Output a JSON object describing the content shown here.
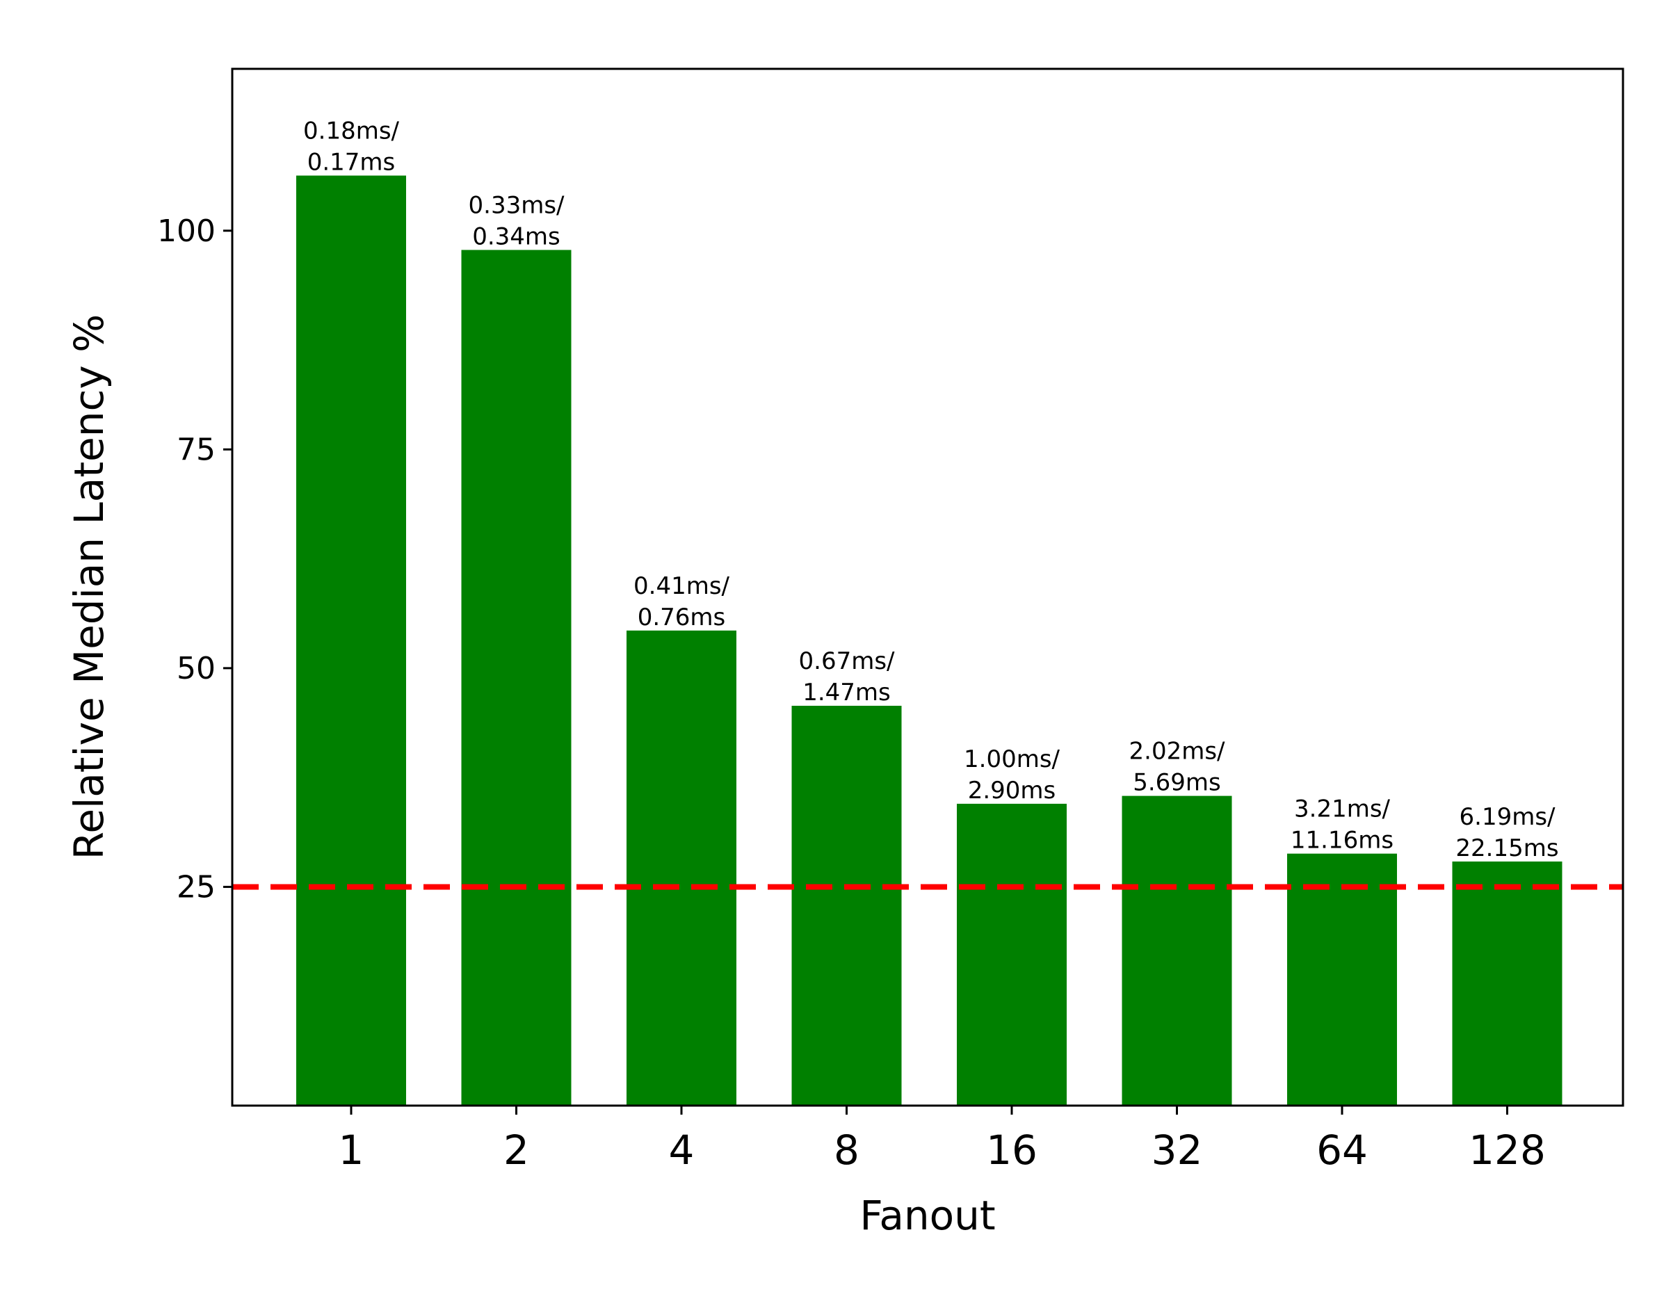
{
  "chart_data": {
    "type": "bar",
    "title": "",
    "xlabel": "Fanout",
    "ylabel": "Relative Median Latency %",
    "categories": [
      "1",
      "2",
      "4",
      "8",
      "16",
      "32",
      "64",
      "128"
    ],
    "values": [
      106.3,
      97.8,
      54.3,
      45.7,
      34.5,
      35.4,
      28.8,
      27.9
    ],
    "bar_labels": [
      [
        "0.18ms/",
        "0.17ms"
      ],
      [
        "0.33ms/",
        "0.34ms"
      ],
      [
        "0.41ms/",
        "0.76ms"
      ],
      [
        "0.67ms/",
        "1.47ms"
      ],
      [
        "1.00ms/",
        "2.90ms"
      ],
      [
        "2.02ms/",
        "5.69ms"
      ],
      [
        "3.21ms/",
        "11.16ms"
      ],
      [
        "6.19ms/",
        "22.15ms"
      ]
    ],
    "yticks": [
      25,
      50,
      75,
      100
    ],
    "ylim": [
      0,
      118.5
    ],
    "reference_line": {
      "value": 25,
      "style": "dashed"
    },
    "grid": false,
    "colors": {
      "bar": "#008000",
      "reference_line": "#ff0000",
      "axis": "#000000"
    }
  }
}
